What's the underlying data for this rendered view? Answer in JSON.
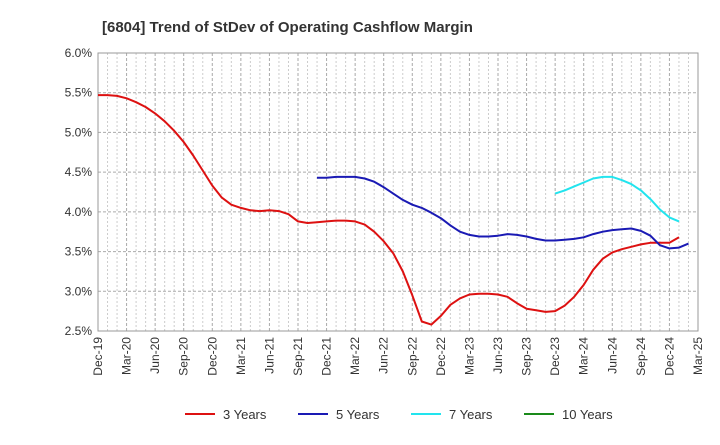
{
  "chart_data": {
    "type": "line",
    "title": "[6804]  Trend of StDev of Operating Cashflow Margin",
    "xlabel": "",
    "ylabel": "",
    "x_ticks": [
      "Dec-19",
      "Mar-20",
      "Jun-20",
      "Sep-20",
      "Dec-20",
      "Mar-21",
      "Jun-21",
      "Sep-21",
      "Dec-21",
      "Mar-22",
      "Jun-22",
      "Sep-22",
      "Dec-22",
      "Mar-23",
      "Jun-23",
      "Sep-23",
      "Dec-23",
      "Mar-24",
      "Jun-24",
      "Sep-24",
      "Dec-24",
      "Mar-25"
    ],
    "y_ticks": [
      "2.5%",
      "3.0%",
      "3.5%",
      "4.0%",
      "4.5%",
      "5.0%",
      "5.5%",
      "6.0%"
    ],
    "ylim": [
      2.5,
      6.0
    ],
    "grid": true,
    "legend_position": "bottom",
    "series": [
      {
        "name": "3 Years",
        "color": "#dd1111",
        "points": [
          [
            "Dec-19",
            5.47
          ],
          [
            "Jan-20",
            5.47
          ],
          [
            "Feb-20",
            5.46
          ],
          [
            "Mar-20",
            5.43
          ],
          [
            "Apr-20",
            5.38
          ],
          [
            "May-20",
            5.32
          ],
          [
            "Jun-20",
            5.24
          ],
          [
            "Jul-20",
            5.14
          ],
          [
            "Aug-20",
            5.02
          ],
          [
            "Sep-20",
            4.88
          ],
          [
            "Oct-20",
            4.71
          ],
          [
            "Nov-20",
            4.52
          ],
          [
            "Dec-20",
            4.33
          ],
          [
            "Jan-21",
            4.18
          ],
          [
            "Feb-21",
            4.09
          ],
          [
            "Mar-21",
            4.05
          ],
          [
            "Apr-21",
            4.02
          ],
          [
            "May-21",
            4.01
          ],
          [
            "Jun-21",
            4.02
          ],
          [
            "Jul-21",
            4.01
          ],
          [
            "Aug-21",
            3.97
          ],
          [
            "Sep-21",
            3.88
          ],
          [
            "Oct-21",
            3.86
          ],
          [
            "Nov-21",
            3.87
          ],
          [
            "Dec-21",
            3.88
          ],
          [
            "Jan-22",
            3.89
          ],
          [
            "Feb-22",
            3.89
          ],
          [
            "Mar-22",
            3.88
          ],
          [
            "Apr-22",
            3.84
          ],
          [
            "May-22",
            3.75
          ],
          [
            "Jun-22",
            3.63
          ],
          [
            "Jul-22",
            3.48
          ],
          [
            "Aug-22",
            3.25
          ],
          [
            "Sep-22",
            2.95
          ],
          [
            "Oct-22",
            2.62
          ],
          [
            "Nov-22",
            2.58
          ],
          [
            "Dec-22",
            2.69
          ],
          [
            "Jan-23",
            2.83
          ],
          [
            "Feb-23",
            2.91
          ],
          [
            "Mar-23",
            2.96
          ],
          [
            "Apr-23",
            2.97
          ],
          [
            "May-23",
            2.97
          ],
          [
            "Jun-23",
            2.96
          ],
          [
            "Jul-23",
            2.93
          ],
          [
            "Aug-23",
            2.85
          ],
          [
            "Sep-23",
            2.78
          ],
          [
            "Oct-23",
            2.76
          ],
          [
            "Nov-23",
            2.74
          ],
          [
            "Dec-23",
            2.75
          ],
          [
            "Jan-24",
            2.82
          ],
          [
            "Feb-24",
            2.93
          ],
          [
            "Mar-24",
            3.08
          ],
          [
            "Apr-24",
            3.27
          ],
          [
            "May-24",
            3.41
          ],
          [
            "Jun-24",
            3.49
          ],
          [
            "Jul-24",
            3.53
          ],
          [
            "Aug-24",
            3.56
          ],
          [
            "Sep-24",
            3.59
          ],
          [
            "Oct-24",
            3.61
          ],
          [
            "Nov-24",
            3.61
          ],
          [
            "Dec-24",
            3.61
          ],
          [
            "Jan-25",
            3.68
          ]
        ]
      },
      {
        "name": "5 Years",
        "color": "#1a1ab4",
        "points": [
          [
            "Nov-21",
            4.43
          ],
          [
            "Dec-21",
            4.43
          ],
          [
            "Jan-22",
            4.44
          ],
          [
            "Feb-22",
            4.44
          ],
          [
            "Mar-22",
            4.44
          ],
          [
            "Apr-22",
            4.42
          ],
          [
            "May-22",
            4.38
          ],
          [
            "Jun-22",
            4.31
          ],
          [
            "Jul-22",
            4.23
          ],
          [
            "Aug-22",
            4.15
          ],
          [
            "Sep-22",
            4.09
          ],
          [
            "Oct-22",
            4.05
          ],
          [
            "Nov-22",
            3.99
          ],
          [
            "Dec-22",
            3.92
          ],
          [
            "Jan-23",
            3.83
          ],
          [
            "Feb-23",
            3.75
          ],
          [
            "Mar-23",
            3.71
          ],
          [
            "Apr-23",
            3.69
          ],
          [
            "May-23",
            3.69
          ],
          [
            "Jun-23",
            3.7
          ],
          [
            "Jul-23",
            3.72
          ],
          [
            "Aug-23",
            3.71
          ],
          [
            "Sep-23",
            3.69
          ],
          [
            "Oct-23",
            3.66
          ],
          [
            "Nov-23",
            3.64
          ],
          [
            "Dec-23",
            3.64
          ],
          [
            "Jan-24",
            3.65
          ],
          [
            "Feb-24",
            3.66
          ],
          [
            "Mar-24",
            3.68
          ],
          [
            "Apr-24",
            3.72
          ],
          [
            "May-24",
            3.75
          ],
          [
            "Jun-24",
            3.77
          ],
          [
            "Jul-24",
            3.78
          ],
          [
            "Aug-24",
            3.79
          ],
          [
            "Sep-24",
            3.76
          ],
          [
            "Oct-24",
            3.7
          ],
          [
            "Nov-24",
            3.58
          ],
          [
            "Dec-24",
            3.54
          ],
          [
            "Jan-25",
            3.55
          ],
          [
            "Feb-25",
            3.6
          ]
        ]
      },
      {
        "name": "7 Years",
        "color": "#22e4ee",
        "points": [
          [
            "Dec-23",
            4.23
          ],
          [
            "Jan-24",
            4.27
          ],
          [
            "Feb-24",
            4.32
          ],
          [
            "Mar-24",
            4.37
          ],
          [
            "Apr-24",
            4.42
          ],
          [
            "May-24",
            4.44
          ],
          [
            "Jun-24",
            4.44
          ],
          [
            "Jul-24",
            4.4
          ],
          [
            "Aug-24",
            4.35
          ],
          [
            "Sep-24",
            4.27
          ],
          [
            "Oct-24",
            4.16
          ],
          [
            "Nov-24",
            4.03
          ],
          [
            "Dec-24",
            3.93
          ],
          [
            "Jan-25",
            3.88
          ]
        ]
      },
      {
        "name": "10 Years",
        "color": "#1a8a1a",
        "points": []
      }
    ]
  }
}
